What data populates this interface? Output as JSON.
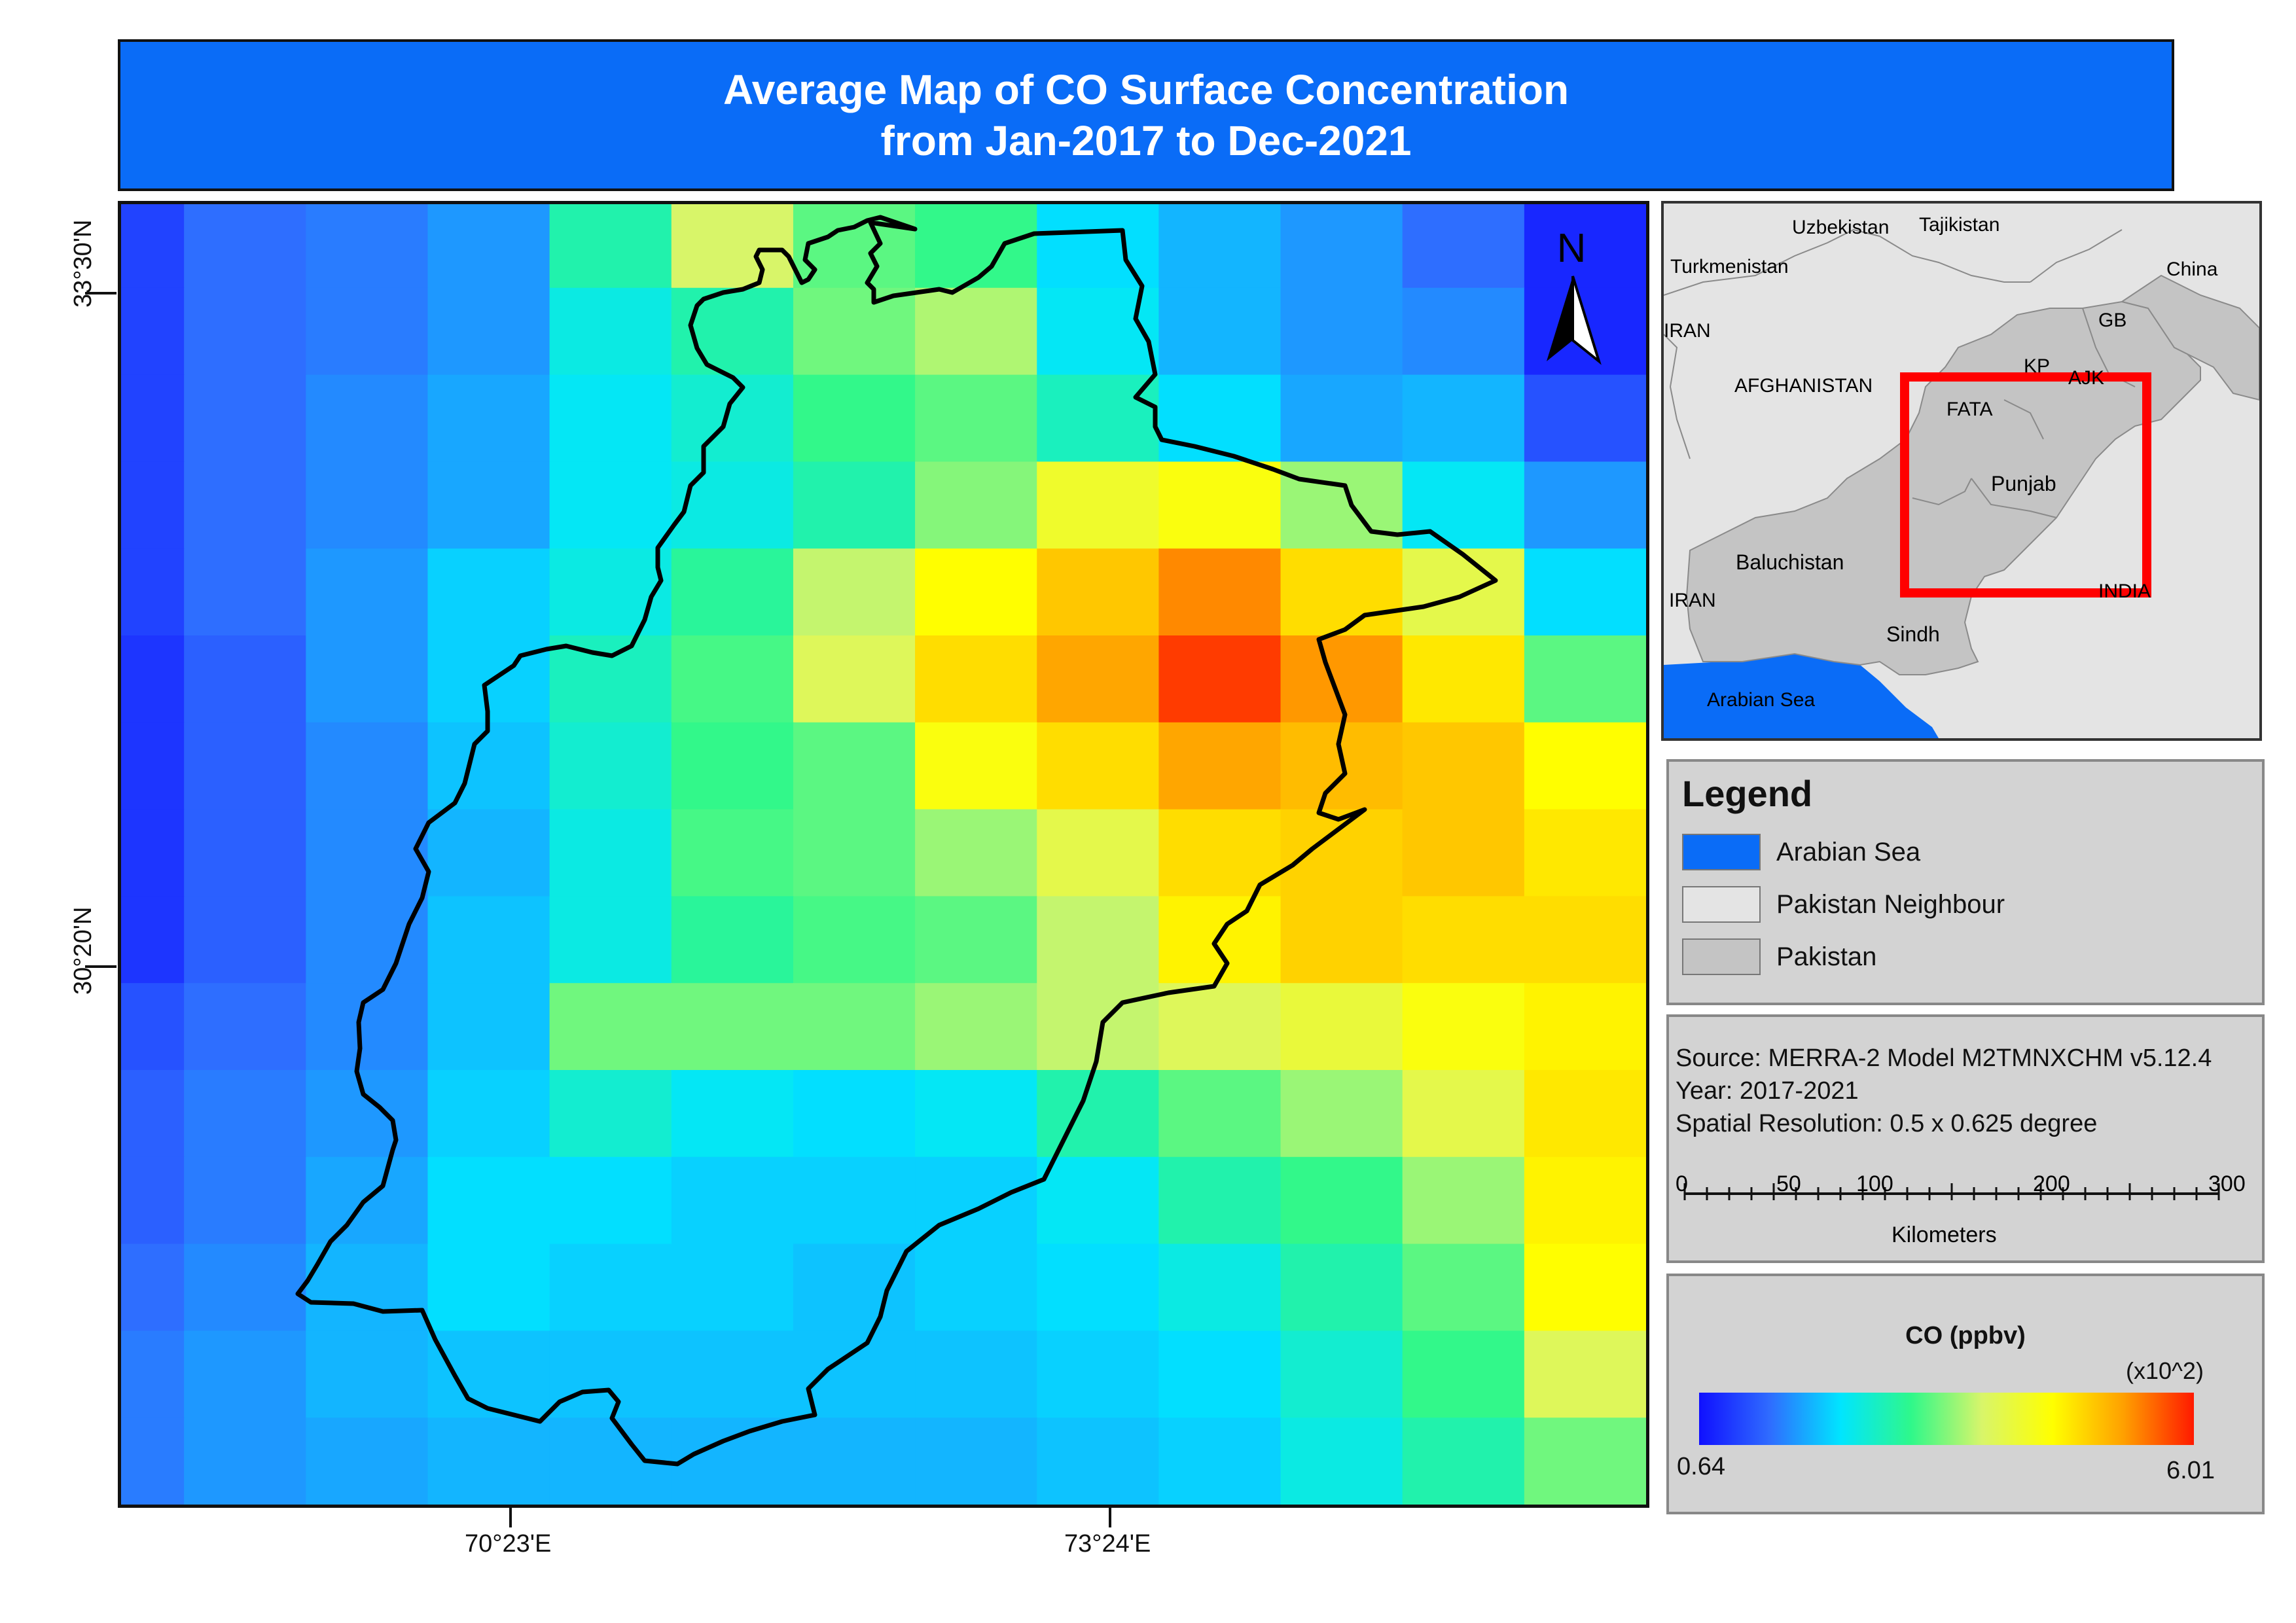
{
  "title": {
    "line1": "Average Map of CO Surface Concentration",
    "line2": "from Jan-2017 to Dec-2021"
  },
  "map": {
    "north_label": "N",
    "lat_labels": [
      "33°30'N",
      "30°20'N"
    ],
    "lon_labels": [
      "70°23'E",
      "73°24'E"
    ],
    "grid_values": [
      [
        1.0,
        1.3,
        1.4,
        1.6,
        2.6,
        3.6,
        3.0,
        2.8,
        2.1,
        1.8,
        1.6,
        1.3,
        0.8
      ],
      [
        1.0,
        1.3,
        1.4,
        1.6,
        2.3,
        2.6,
        3.1,
        3.4,
        2.2,
        1.8,
        1.6,
        1.5,
        0.8
      ],
      [
        1.0,
        1.3,
        1.5,
        1.7,
        2.2,
        2.4,
        2.8,
        3.0,
        2.5,
        2.1,
        1.7,
        1.8,
        1.1
      ],
      [
        1.0,
        1.3,
        1.5,
        1.7,
        2.2,
        2.3,
        2.6,
        3.2,
        4.0,
        4.2,
        3.3,
        2.2,
        1.6
      ],
      [
        1.0,
        1.3,
        1.6,
        2.0,
        2.3,
        2.7,
        3.5,
        4.3,
        4.8,
        5.3,
        4.6,
        3.8,
        2.1
      ],
      [
        0.9,
        1.2,
        1.6,
        2.0,
        2.5,
        2.9,
        3.7,
        4.6,
        5.1,
        5.8,
        5.2,
        4.5,
        3.0
      ],
      [
        0.9,
        1.2,
        1.5,
        1.9,
        2.4,
        2.8,
        3.0,
        4.2,
        4.6,
        5.1,
        4.9,
        4.8,
        4.3
      ],
      [
        0.9,
        1.2,
        1.5,
        1.8,
        2.3,
        2.9,
        3.0,
        3.3,
        3.8,
        4.6,
        4.7,
        4.8,
        4.5
      ],
      [
        0.9,
        1.2,
        1.5,
        1.9,
        2.3,
        2.7,
        2.9,
        3.0,
        3.5,
        4.4,
        4.7,
        4.6,
        4.6
      ],
      [
        1.1,
        1.3,
        1.5,
        1.9,
        3.1,
        3.1,
        3.1,
        3.3,
        3.5,
        3.7,
        3.9,
        4.2,
        4.4
      ],
      [
        1.2,
        1.4,
        1.6,
        2.0,
        2.4,
        2.2,
        2.1,
        2.2,
        2.6,
        3.0,
        3.3,
        3.8,
        4.5
      ],
      [
        1.2,
        1.4,
        1.7,
        2.1,
        2.1,
        2.0,
        2.0,
        2.0,
        2.2,
        2.6,
        2.8,
        3.3,
        4.4
      ],
      [
        1.3,
        1.5,
        1.8,
        2.1,
        2.0,
        2.0,
        1.9,
        2.0,
        2.1,
        2.3,
        2.6,
        3.0,
        4.3
      ],
      [
        1.4,
        1.6,
        1.8,
        1.9,
        1.9,
        1.9,
        1.9,
        1.9,
        2.0,
        2.1,
        2.4,
        2.8,
        3.7
      ],
      [
        1.4,
        1.6,
        1.7,
        1.8,
        1.8,
        1.8,
        1.8,
        1.8,
        1.9,
        2.0,
        2.3,
        2.6,
        3.1
      ]
    ]
  },
  "inset": {
    "labels": {
      "uzbekistan": "Uzbekistan",
      "tajikistan": "Tajikistan",
      "turkmenistan": "Turkmenistan",
      "china": "China",
      "iran_top": "IRAN",
      "gb": "GB",
      "kp": "KP",
      "ajk": "AJK",
      "afghanistan": "AFGHANISTAN",
      "fata": "FATA",
      "punjab": "Punjab",
      "baluchistan": "Baluchistan",
      "iran_bottom": "IRAN",
      "india": "INDIA",
      "sindh": "Sindh",
      "arabian_sea": "Arabian Sea"
    }
  },
  "legend": {
    "title": "Legend",
    "items": [
      {
        "label": "Arabian Sea",
        "color": "#0a6cf7"
      },
      {
        "label": "Pakistan Neighbour",
        "color": "#e4e4e4"
      },
      {
        "label": "Pakistan",
        "color": "#c4c4c4"
      }
    ]
  },
  "source": {
    "line1": "Source: MERRA-2 Model M2TMNXCHM v5.12.4",
    "line2": "Year: 2017-2021",
    "line3": "Spatial Resolution: 0.5 x 0.625  degree",
    "scale_ticks": [
      "0",
      "50",
      "100",
      "200",
      "300"
    ],
    "scale_unit": "Kilometers"
  },
  "colorbar": {
    "title": "CO (ppbv)",
    "multiplier": "(x10^2)",
    "min_label": "0.64",
    "max_label": "6.01",
    "min": 0.64,
    "max": 6.01
  }
}
